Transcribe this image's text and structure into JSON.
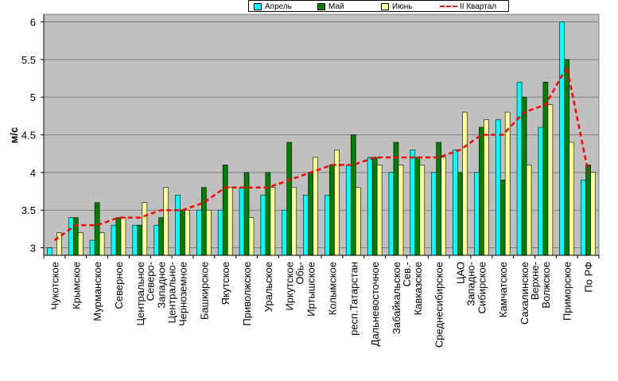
{
  "chart_data": {
    "type": "bar",
    "ylabel": "м/с",
    "ylim": [
      2.9,
      6.1
    ],
    "yticks": [
      "3",
      "3.5",
      "4",
      "4.5",
      "5",
      "5.5",
      "6"
    ],
    "grid": true,
    "legend_position": "top",
    "categories": [
      "Чукотское",
      "Крымское",
      "Мурманское",
      "Северное",
      "Центральное",
      "Северо-Западное",
      "Центрально-Черноземное",
      "Башкирское",
      "Якутское",
      "Приволжское",
      "Уральское",
      "Иркутское",
      "Обь-Иртышское",
      "Колымское",
      "респ.Татарстан",
      "Дальневосточное",
      "Забайкальское",
      "Сев.-Кавказское",
      "Среднесибирское",
      "ЦАО",
      "Западно-Сибирское",
      "Камчатское",
      "Сахалинское",
      "Верхне-Волжское",
      "Приморское",
      "По РФ"
    ],
    "category_lines": [
      [
        "Чукотское"
      ],
      [
        "Крымское"
      ],
      [
        "Мурманское"
      ],
      [
        "Северное"
      ],
      [
        "Центральное"
      ],
      [
        "Северо-",
        "Западное"
      ],
      [
        "Центрально-",
        "Черноземное"
      ],
      [
        "Башкирское"
      ],
      [
        "Якутское"
      ],
      [
        "Приволжское"
      ],
      [
        "Уральское"
      ],
      [
        "Иркутское"
      ],
      [
        "Обь-",
        "Иртышское"
      ],
      [
        "Колымское"
      ],
      [
        "респ.Татарстан"
      ],
      [
        "Дальневосточное"
      ],
      [
        "Забайкальское"
      ],
      [
        "Сев.-",
        "Кавказское"
      ],
      [
        "Среднесибирское"
      ],
      [
        "ЦАО"
      ],
      [
        "Западно-",
        "Сибирское"
      ],
      [
        "Камчатское"
      ],
      [
        "Сахалинское"
      ],
      [
        "Верхне-",
        "Волжское"
      ],
      [
        "Приморское"
      ],
      [
        "По РФ"
      ]
    ],
    "series": [
      {
        "name": "Апрель",
        "kind": "bar",
        "color": "#00ffff",
        "values": [
          3.0,
          3.4,
          3.1,
          3.3,
          3.3,
          3.3,
          3.7,
          3.5,
          3.5,
          3.8,
          3.7,
          3.5,
          3.7,
          3.7,
          4.1,
          4.2,
          4.0,
          4.3,
          4.0,
          4.3,
          4.0,
          4.7,
          5.2,
          4.6,
          6.0,
          3.9
        ]
      },
      {
        "name": "Май",
        "kind": "bar",
        "color": "#008000",
        "values": [
          2.9,
          3.4,
          3.6,
          3.4,
          3.3,
          3.4,
          3.5,
          3.8,
          4.1,
          4.0,
          4.0,
          4.4,
          4.0,
          4.1,
          4.5,
          4.2,
          4.4,
          4.2,
          4.4,
          4.0,
          4.6,
          3.9,
          5.0,
          5.2,
          5.5,
          4.1
        ]
      },
      {
        "name": "Июнь",
        "kind": "bar",
        "color": "#ffff99",
        "values": [
          3.2,
          3.2,
          3.2,
          3.4,
          3.6,
          3.8,
          3.5,
          3.5,
          3.8,
          3.4,
          3.8,
          3.8,
          4.2,
          4.3,
          3.8,
          4.1,
          4.1,
          4.1,
          4.2,
          4.8,
          4.7,
          4.8,
          4.1,
          4.9,
          4.4,
          4.0
        ]
      },
      {
        "name": "II Квартал",
        "kind": "line",
        "color": "#ff0000",
        "values": [
          3.1,
          3.3,
          3.3,
          3.4,
          3.4,
          3.5,
          3.5,
          3.6,
          3.8,
          3.8,
          3.8,
          3.9,
          4.0,
          4.1,
          4.1,
          4.2,
          4.2,
          4.2,
          4.2,
          4.3,
          4.5,
          4.5,
          4.8,
          4.9,
          5.4,
          4.0
        ]
      }
    ]
  }
}
